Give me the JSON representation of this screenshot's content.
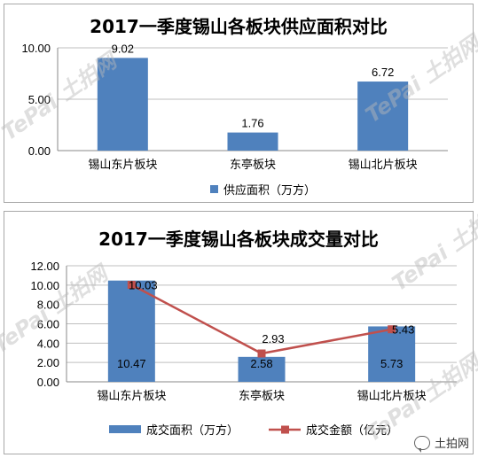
{
  "watermark": "TePai 土拍网",
  "brand": {
    "label": "土拍网",
    "icon": "wechat-icon"
  },
  "chart_data": [
    {
      "type": "bar",
      "title": "2017一季度锡山各板块供应面积对比",
      "categories": [
        "锡山东片板块",
        "东亭板块",
        "锡山北片板块"
      ],
      "series": [
        {
          "name": "供应面积（万方）",
          "values": [
            9.02,
            1.76,
            6.72
          ],
          "labels": [
            "9.02",
            "1.76",
            "6.72"
          ],
          "color": "#4f81bd"
        }
      ],
      "ylim": [
        0,
        10
      ],
      "yticks": [
        "0.00",
        "5.00",
        "10.00"
      ],
      "legend": "bottom",
      "grid": true
    },
    {
      "type": "bar+line",
      "title": "2017一季度锡山各板块成交量对比",
      "categories": [
        "锡山东片板块",
        "东亭板块",
        "锡山北片板块"
      ],
      "series": [
        {
          "name": "成交面积（万方）",
          "type": "bar",
          "values": [
            10.47,
            2.58,
            5.73
          ],
          "labels": [
            "10.47",
            "2.58",
            "5.73"
          ],
          "color": "#4f81bd"
        },
        {
          "name": "成交金额（亿元）",
          "type": "line",
          "values": [
            10.03,
            2.93,
            5.43
          ],
          "labels": [
            "10.03",
            "2.93",
            "5.43"
          ],
          "color": "#c0504d"
        }
      ],
      "ylim": [
        0,
        12
      ],
      "yticks": [
        "0.00",
        "2.00",
        "4.00",
        "6.00",
        "8.00",
        "10.00",
        "12.00"
      ],
      "legend": "bottom",
      "grid": true
    }
  ]
}
